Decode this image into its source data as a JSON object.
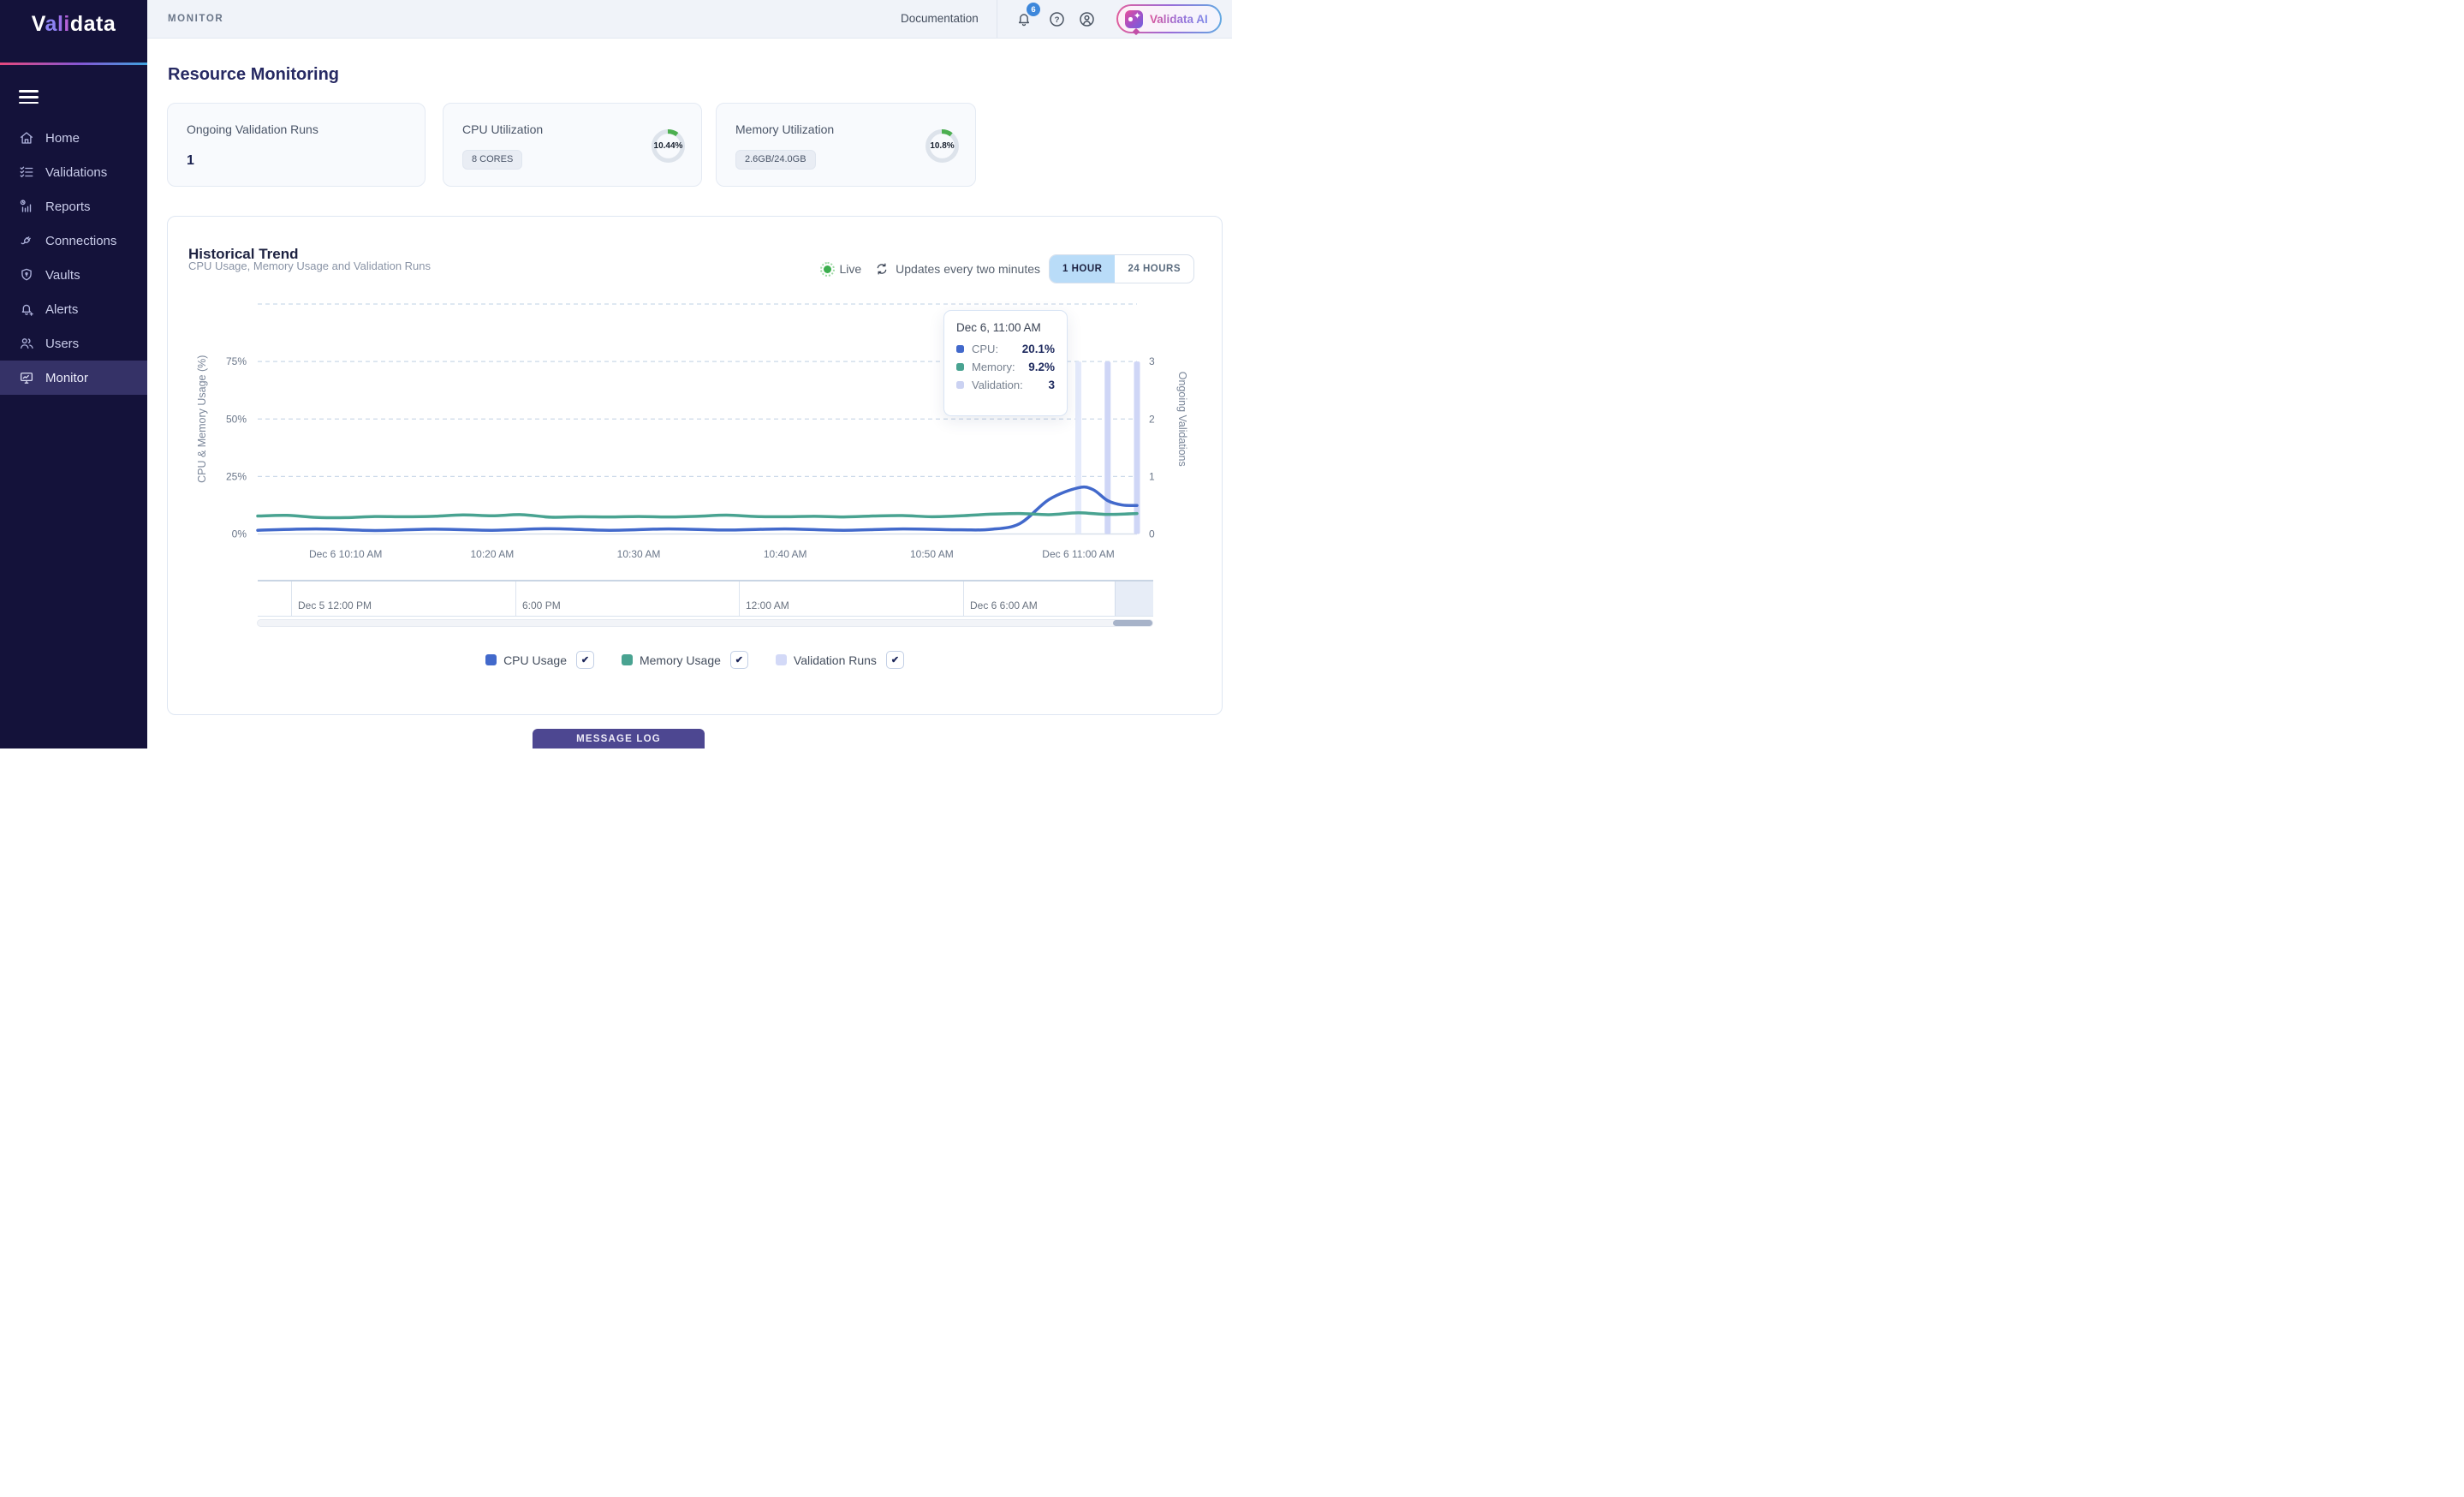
{
  "sidebar": {
    "logo_segments": [
      {
        "text": "V",
        "color": "#FFFFFF"
      },
      {
        "text": "a",
        "color": "#8C82F2"
      },
      {
        "text": "l",
        "color": "#9B70E8"
      },
      {
        "text": "i",
        "color": "#B562D8"
      },
      {
        "text": "data",
        "color": "#FFFFFF"
      }
    ],
    "items": [
      {
        "label": "Home",
        "icon": "home-icon",
        "active": false
      },
      {
        "label": "Validations",
        "icon": "checklist-icon",
        "active": false
      },
      {
        "label": "Reports",
        "icon": "report-chart-icon",
        "active": false
      },
      {
        "label": "Connections",
        "icon": "plug-icon",
        "active": false
      },
      {
        "label": "Vaults",
        "icon": "shield-icon",
        "active": false
      },
      {
        "label": "Alerts",
        "icon": "bell-plus-icon",
        "active": false
      },
      {
        "label": "Users",
        "icon": "users-icon",
        "active": false
      },
      {
        "label": "Monitor",
        "icon": "monitor-icon",
        "active": true
      }
    ]
  },
  "header": {
    "breadcrumb": "MONITOR",
    "doc_link": "Documentation",
    "notification_count": "6",
    "ai_button_label": "Validata AI"
  },
  "page": {
    "title": "Resource Monitoring"
  },
  "cards": [
    {
      "title": "Ongoing Validation Runs",
      "value": "1"
    },
    {
      "title": "CPU Utilization",
      "chip": "8 CORES",
      "percent_label": "10.44%",
      "percent_value": 10.44,
      "ring_color": "#4CAF50"
    },
    {
      "title": "Memory Utilization",
      "chip": "2.6GB/24.0GB",
      "percent_label": "10.8%",
      "percent_value": 10.8,
      "ring_color": "#4CAF50"
    }
  ],
  "panel": {
    "title": "Historical Trend",
    "subtitle": "CPU Usage, Memory Usage and Validation Runs",
    "live_label": "Live",
    "updates_label": "Updates every two minutes",
    "range_options": [
      "1 HOUR",
      "24 HOURS"
    ],
    "active_range": "1 HOUR"
  },
  "legend": [
    {
      "label": "CPU Usage",
      "color": "#4269CB",
      "checked": true
    },
    {
      "label": "Memory Usage",
      "color": "#49A391",
      "checked": true
    },
    {
      "label": "Validation Runs",
      "color": "#D3D9F7",
      "checked": true
    }
  ],
  "timeline": {
    "labels": [
      "Dec 5 12:00 PM",
      "6:00 PM",
      "12:00 AM",
      "Dec 6 6:00 AM"
    ]
  },
  "message_log_label": "MESSAGE LOG",
  "chart_data": {
    "type": "line+bar",
    "title": "Historical Trend",
    "subtitle": "CPU Usage, Memory Usage and Validation Runs",
    "t_domain": [
      4,
      64
    ],
    "x_ticks": [
      {
        "t": 10,
        "label": "Dec 6 10:10 AM"
      },
      {
        "t": 20,
        "label": "10:20 AM"
      },
      {
        "t": 30,
        "label": "10:30 AM"
      },
      {
        "t": 40,
        "label": "10:40 AM"
      },
      {
        "t": 50,
        "label": "10:50 AM"
      },
      {
        "t": 60,
        "label": "Dec 6 11:00 AM"
      }
    ],
    "y_left": {
      "label": "CPU & Memory Usage (%)",
      "max": 100,
      "ticks": [
        {
          "v": 75,
          "label": "75%"
        },
        {
          "v": 50,
          "label": "50%"
        },
        {
          "v": 25,
          "label": "25%"
        },
        {
          "v": 0,
          "label": "0%"
        }
      ]
    },
    "y_right": {
      "label": "Ongoing Validations",
      "max": 4,
      "ticks": [
        {
          "v": 3,
          "label": "3"
        },
        {
          "v": 2,
          "label": "2"
        },
        {
          "v": 1,
          "label": "1"
        },
        {
          "v": 0,
          "label": "0"
        }
      ]
    },
    "gridlines": [
      100,
      75,
      50,
      25,
      0
    ],
    "series": [
      {
        "name": "CPU Usage",
        "color": "#4269CB",
        "points": [
          [
            4,
            1.6
          ],
          [
            8,
            2.2
          ],
          [
            12,
            1.5
          ],
          [
            16,
            2.1
          ],
          [
            20,
            1.6
          ],
          [
            24,
            2.3
          ],
          [
            28,
            1.6
          ],
          [
            32,
            2.2
          ],
          [
            36,
            1.7
          ],
          [
            40,
            2.2
          ],
          [
            44,
            1.6
          ],
          [
            48,
            2.2
          ],
          [
            52,
            1.8
          ],
          [
            54,
            2.0
          ],
          [
            56,
            4.5
          ],
          [
            58,
            15.0
          ],
          [
            60,
            20.1
          ],
          [
            61,
            19.3
          ],
          [
            62,
            14.5
          ],
          [
            63,
            12.6
          ],
          [
            64,
            12.4
          ]
        ]
      },
      {
        "name": "Memory Usage",
        "color": "#49A391",
        "points": [
          [
            4,
            7.8
          ],
          [
            6,
            8.1
          ],
          [
            8,
            7.2
          ],
          [
            10,
            7.1
          ],
          [
            12,
            7.6
          ],
          [
            14,
            7.5
          ],
          [
            16,
            7.7
          ],
          [
            18,
            8.3
          ],
          [
            20,
            7.9
          ],
          [
            22,
            8.4
          ],
          [
            24,
            7.3
          ],
          [
            26,
            7.5
          ],
          [
            28,
            7.4
          ],
          [
            30,
            7.6
          ],
          [
            32,
            7.4
          ],
          [
            34,
            7.7
          ],
          [
            36,
            8.2
          ],
          [
            38,
            7.6
          ],
          [
            40,
            7.5
          ],
          [
            42,
            7.7
          ],
          [
            44,
            7.4
          ],
          [
            46,
            7.8
          ],
          [
            48,
            8.0
          ],
          [
            50,
            7.5
          ],
          [
            52,
            7.9
          ],
          [
            54,
            8.6
          ],
          [
            56,
            8.9
          ],
          [
            58,
            8.4
          ],
          [
            60,
            9.2
          ],
          [
            62,
            8.5
          ],
          [
            64,
            8.9
          ]
        ]
      }
    ],
    "bars": {
      "name": "Validation Runs",
      "color": "#CFD6F6",
      "highlight_color": "#E4EAFB",
      "width": 7,
      "points": [
        {
          "t": 60,
          "v": 3,
          "highlighted": true
        },
        {
          "t": 62,
          "v": 3
        },
        {
          "t": 64,
          "v": 3
        }
      ]
    },
    "tooltip": {
      "title": "Dec 6, 11:00 AM",
      "rows": [
        {
          "label": "CPU:",
          "value": "20.1%",
          "color": "#4269CB"
        },
        {
          "label": "Memory:",
          "value": "9.2%",
          "color": "#49A391"
        },
        {
          "label": "Validation:",
          "value": "3",
          "color": "#CBD2F2"
        }
      ]
    }
  }
}
